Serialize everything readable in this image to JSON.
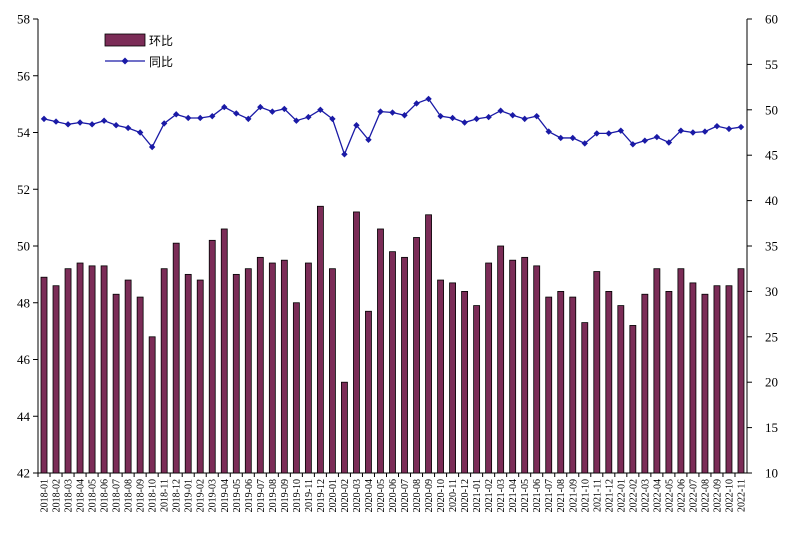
{
  "chart_data": {
    "type": "bar+line",
    "title": "",
    "legend": {
      "placement": "top-left",
      "entries": [
        {
          "label": "环比",
          "type": "bar",
          "color": "#7b2c57"
        },
        {
          "label": "同比",
          "type": "line",
          "color": "#1a1aa6"
        }
      ]
    },
    "y_left": {
      "min": 42,
      "max": 58,
      "ticks": [
        42,
        44,
        46,
        48,
        50,
        52,
        54,
        56,
        58
      ]
    },
    "y_right": {
      "min": 10,
      "max": 60,
      "ticks": [
        10,
        15,
        20,
        25,
        30,
        35,
        40,
        45,
        50,
        55,
        60
      ]
    },
    "grid": false,
    "categories": [
      "2018-01",
      "2018-02",
      "2018-03",
      "2018-04",
      "2018-05",
      "2018-06",
      "2018-07",
      "2018-08",
      "2018-09",
      "2018-10",
      "2018-11",
      "2018-12",
      "2019-01",
      "2019-02",
      "2019-03",
      "2019-04",
      "2019-05",
      "2019-06",
      "2019-07",
      "2019-08",
      "2019-09",
      "2019-10",
      "2019-11",
      "2019-12",
      "2020-01",
      "2020-02",
      "2020-03",
      "2020-04",
      "2020-05",
      "2020-06",
      "2020-07",
      "2020-08",
      "2020-09",
      "2020-10",
      "2020-11",
      "2020-12",
      "2021-01",
      "2021-02",
      "2021-03",
      "2021-04",
      "2021-05",
      "2021-06",
      "2021-07",
      "2021-08",
      "2021-09",
      "2021-10",
      "2021-11",
      "2021-12",
      "2022-01",
      "2022-02",
      "2022-03",
      "2022-04",
      "2022-05",
      "2022-06",
      "2022-07",
      "2022-08",
      "2022-09",
      "2022-10",
      "2022-11"
    ],
    "series": [
      {
        "name": "环比",
        "type": "bar",
        "axis": "left",
        "values": [
          48.9,
          48.6,
          49.2,
          49.4,
          49.3,
          49.3,
          48.3,
          48.8,
          48.2,
          46.8,
          49.2,
          50.1,
          49.0,
          48.8,
          50.2,
          50.6,
          49.0,
          49.2,
          49.6,
          49.4,
          49.5,
          48.0,
          49.4,
          51.4,
          49.2,
          45.2,
          51.2,
          47.7,
          50.6,
          49.8,
          49.6,
          50.3,
          51.1,
          48.8,
          48.7,
          48.4,
          47.9,
          49.4,
          50.0,
          49.5,
          49.6,
          49.3,
          48.2,
          48.4,
          48.2,
          47.3,
          49.1,
          48.4,
          47.9,
          47.2,
          48.3,
          49.2,
          48.4,
          49.2,
          48.7,
          48.3,
          48.6,
          48.6,
          49.2
        ]
      },
      {
        "name": "同比",
        "type": "line",
        "axis": "right",
        "values": [
          49.0,
          48.7,
          48.4,
          48.6,
          48.4,
          48.8,
          48.3,
          48.0,
          47.5,
          45.9,
          48.5,
          49.5,
          49.1,
          49.1,
          49.3,
          50.3,
          49.6,
          49.0,
          50.3,
          49.8,
          50.1,
          48.8,
          49.2,
          50.0,
          49.0,
          45.1,
          48.3,
          46.7,
          49.8,
          49.7,
          49.4,
          50.7,
          51.2,
          49.3,
          49.1,
          48.6,
          49.0,
          49.2,
          49.9,
          49.4,
          49.0,
          49.3,
          47.6,
          46.9,
          46.9,
          46.3,
          47.4,
          47.4,
          47.7,
          46.2,
          46.6,
          47.0,
          46.4,
          47.7,
          47.5,
          47.6,
          48.2,
          47.9,
          48.1
        ]
      }
    ]
  }
}
